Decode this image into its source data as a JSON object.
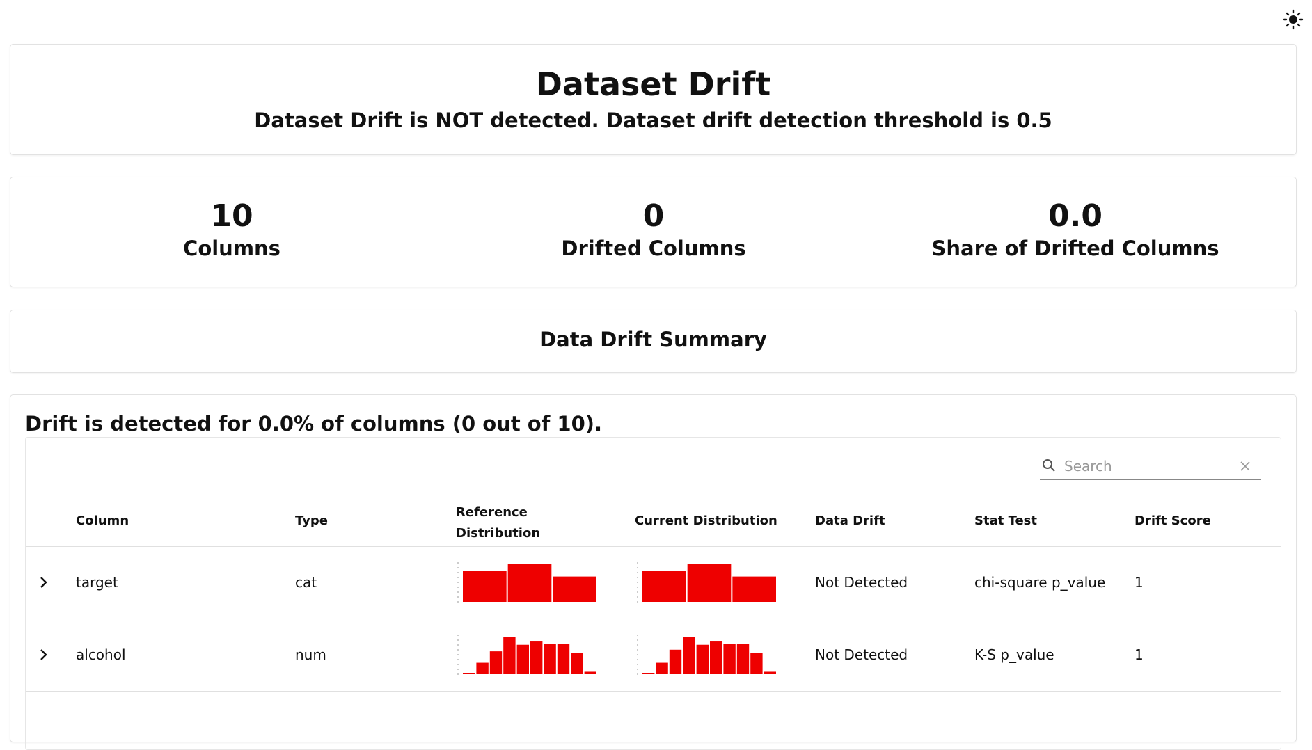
{
  "header": {
    "title": "Dataset Drift",
    "subtitle": "Dataset Drift is NOT detected. Dataset drift detection threshold is 0.5"
  },
  "counters": [
    {
      "value": "10",
      "label": "Columns"
    },
    {
      "value": "0",
      "label": "Drifted Columns"
    },
    {
      "value": "0.0",
      "label": "Share of Drifted Columns"
    }
  ],
  "summary_title": "Data Drift Summary",
  "table": {
    "caption": "Drift is detected for 0.0% of columns (0 out of 10).",
    "search_placeholder": "Search",
    "columns": [
      "Column",
      "Type",
      "Reference Distribution",
      "Current Distribution",
      "Data Drift",
      "Stat Test",
      "Drift Score"
    ],
    "rows": [
      {
        "column": "target",
        "type": "cat",
        "reference_distribution": [
          38,
          46,
          31
        ],
        "current_distribution": [
          38,
          46,
          31
        ],
        "data_drift": "Not Detected",
        "stat_test": "chi-square p_value",
        "drift_score": "1"
      },
      {
        "column": "alcohol",
        "type": "num",
        "reference_distribution": [
          1,
          14,
          28,
          46,
          36,
          40,
          37,
          37,
          26,
          3
        ],
        "current_distribution": [
          1,
          14,
          30,
          46,
          36,
          40,
          37,
          37,
          26,
          3
        ],
        "data_drift": "Not Detected",
        "stat_test": "K-S p_value",
        "drift_score": "1"
      }
    ]
  }
}
